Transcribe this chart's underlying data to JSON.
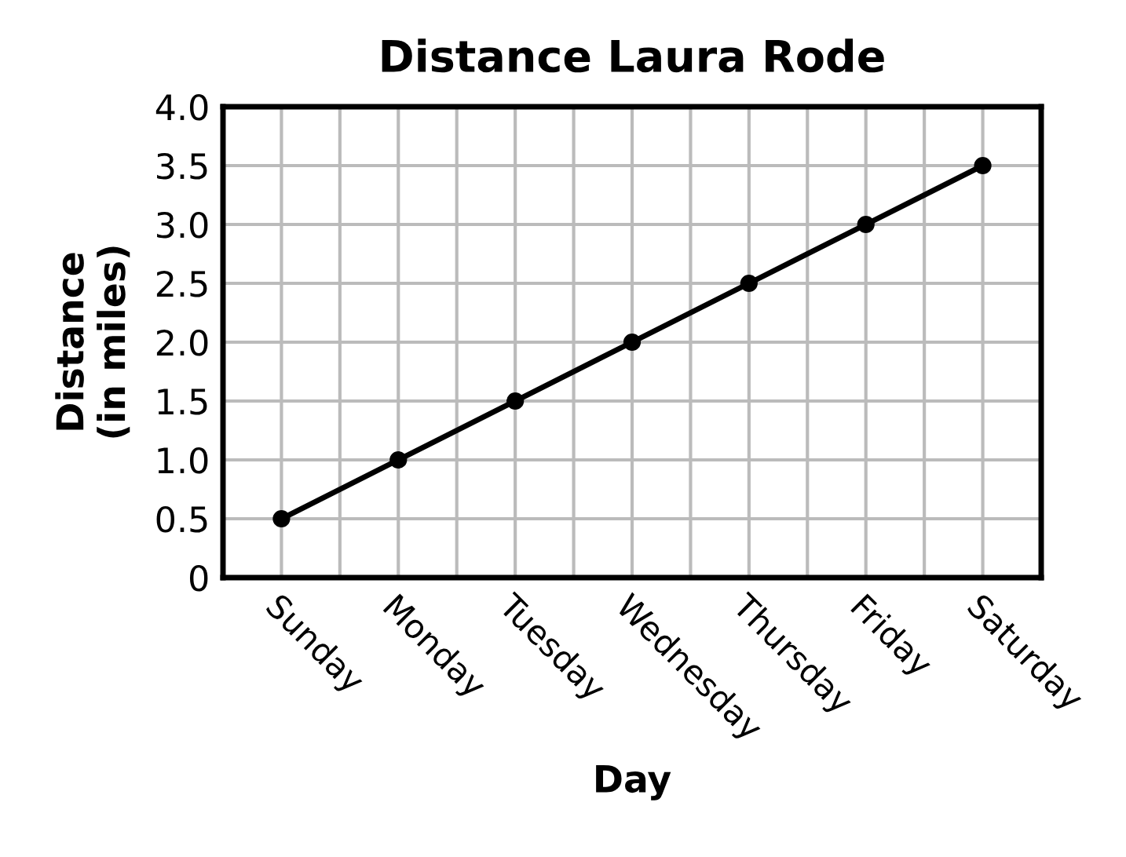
{
  "chart_data": {
    "type": "line",
    "title": "Distance Laura Rode",
    "xlabel": "Day",
    "ylabel": "Distance\n(in miles)",
    "categories": [
      "Sunday",
      "Monday",
      "Tuesday",
      "Wednesday",
      "Thursday",
      "Friday",
      "Saturday"
    ],
    "series": [
      {
        "color": "#000000",
        "values": [
          0.5,
          1.0,
          1.5,
          2.0,
          2.5,
          3.0,
          3.5
        ]
      }
    ],
    "ylim": [
      0,
      4.0
    ],
    "yticks": [
      {
        "value": 0,
        "label": "0"
      },
      {
        "value": 0.5,
        "label": "0.5"
      },
      {
        "value": 1.0,
        "label": "1.0"
      },
      {
        "value": 1.5,
        "label": "1.5"
      },
      {
        "value": 2.0,
        "label": "2.0"
      },
      {
        "value": 2.5,
        "label": "2.5"
      },
      {
        "value": 3.0,
        "label": "3.0"
      },
      {
        "value": 3.5,
        "label": "3.5"
      },
      {
        "value": 4.0,
        "label": "4.0"
      }
    ],
    "grid": true,
    "marker": "circle",
    "line_style": "solid",
    "legend": false
  }
}
